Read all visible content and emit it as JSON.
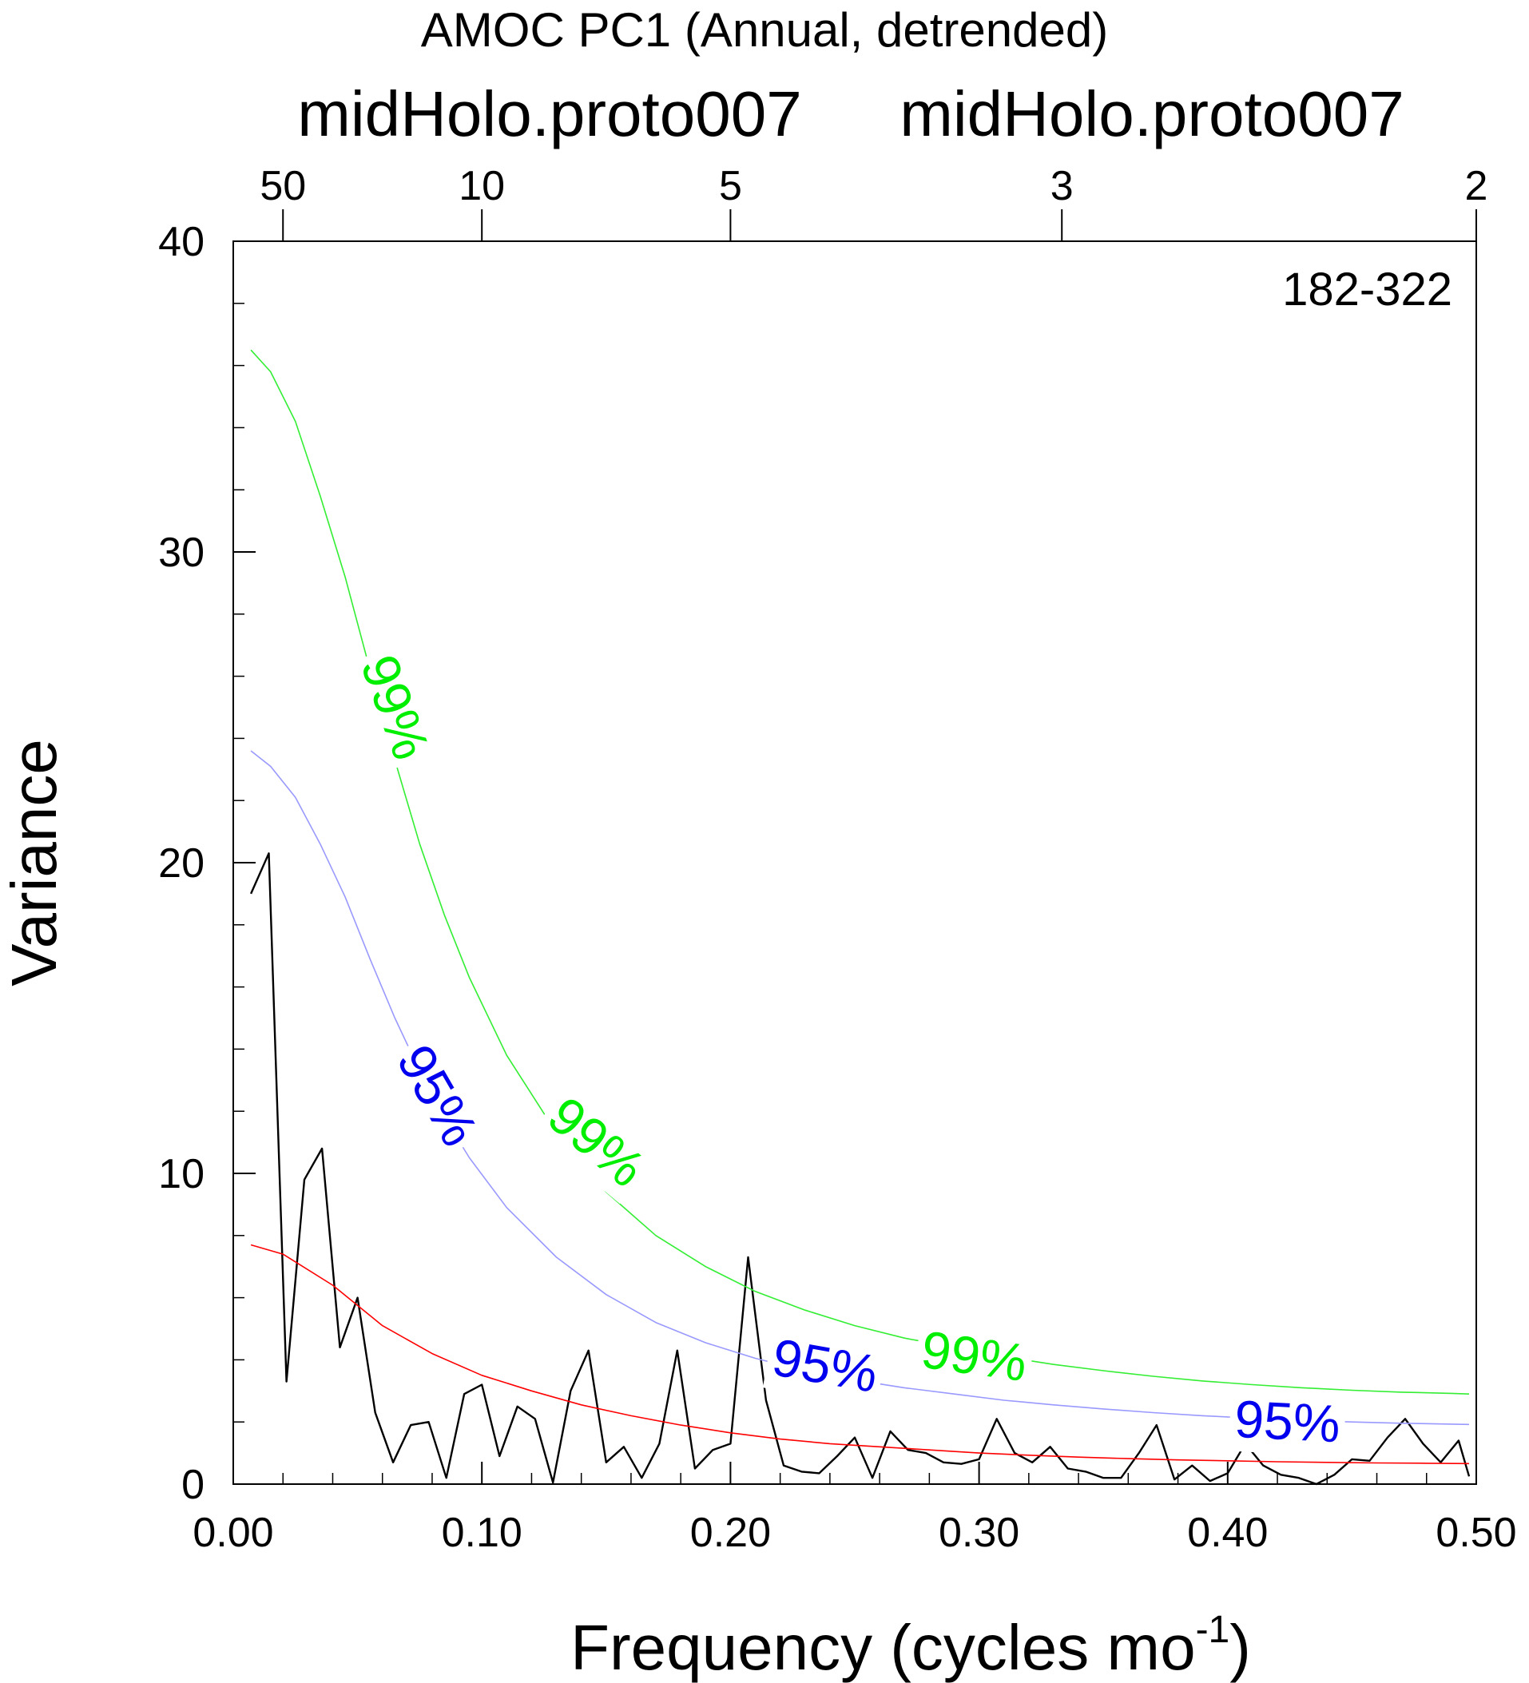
{
  "chart_data": {
    "type": "line",
    "title": "AMOC PC1 (Annual, detrended)",
    "subtitle_left": "midHolo.proto007",
    "subtitle_right": "midHolo.proto007",
    "period_label": "182-322",
    "xlabel_main": "Frequency (cycles mo",
    "xlabel_sup": "-1",
    "xlabel_close": ")",
    "ylabel": "Variance",
    "xlim": [
      0,
      0.5
    ],
    "ylim": [
      0,
      40
    ],
    "grid": false,
    "x_ticks": [
      {
        "value": 0.0,
        "label": "0.00"
      },
      {
        "value": 0.1,
        "label": "0.10"
      },
      {
        "value": 0.2,
        "label": "0.20"
      },
      {
        "value": 0.3,
        "label": "0.30"
      },
      {
        "value": 0.4,
        "label": "0.40"
      },
      {
        "value": 0.5,
        "label": "0.50"
      }
    ],
    "y_ticks": [
      {
        "value": 0,
        "label": "0"
      },
      {
        "value": 10,
        "label": "10"
      },
      {
        "value": 20,
        "label": "20"
      },
      {
        "value": 30,
        "label": "30"
      },
      {
        "value": 40,
        "label": "40"
      }
    ],
    "top_axis_ticks": [
      {
        "freq": 0.02,
        "label": "50"
      },
      {
        "freq": 0.1,
        "label": "10"
      },
      {
        "freq": 0.2,
        "label": "5"
      },
      {
        "freq": 0.3333,
        "label": "3"
      },
      {
        "freq": 0.5,
        "label": "2"
      }
    ],
    "series": [
      {
        "color": "#000000",
        "x": [
          0.0071,
          0.0143,
          0.0214,
          0.0286,
          0.0357,
          0.0429,
          0.05,
          0.0571,
          0.0643,
          0.0714,
          0.0786,
          0.0857,
          0.0929,
          0.1,
          0.1071,
          0.1143,
          0.1214,
          0.1286,
          0.1357,
          0.1429,
          0.15,
          0.1571,
          0.1643,
          0.1714,
          0.1786,
          0.1857,
          0.1929,
          0.2,
          0.2071,
          0.2143,
          0.2214,
          0.2286,
          0.2357,
          0.2429,
          0.25,
          0.2571,
          0.2643,
          0.2714,
          0.2786,
          0.2857,
          0.2929,
          0.3,
          0.3071,
          0.3143,
          0.3214,
          0.3286,
          0.3357,
          0.3429,
          0.35,
          0.3571,
          0.3643,
          0.3714,
          0.3786,
          0.3857,
          0.3929,
          0.4,
          0.4071,
          0.4143,
          0.4214,
          0.4286,
          0.4357,
          0.4429,
          0.45,
          0.4571,
          0.4643,
          0.4714,
          0.4786,
          0.4857,
          0.4929,
          0.4971
        ],
        "y": [
          19.0,
          20.3,
          3.3,
          9.8,
          10.8,
          4.4,
          6.0,
          2.3,
          0.7,
          1.9,
          2.0,
          0.2,
          2.9,
          3.2,
          0.9,
          2.5,
          2.1,
          0.05,
          3.0,
          4.3,
          0.7,
          1.2,
          0.2,
          1.3,
          4.3,
          0.5,
          1.1,
          1.3,
          7.3,
          2.7,
          0.6,
          0.4,
          0.35,
          0.9,
          1.5,
          0.2,
          1.7,
          1.1,
          1.0,
          0.7,
          0.65,
          0.8,
          2.1,
          1.0,
          0.7,
          1.2,
          0.5,
          0.4,
          0.2,
          0.2,
          1.0,
          1.9,
          0.15,
          0.6,
          0.1,
          0.35,
          1.3,
          0.6,
          0.3,
          0.2,
          0.0,
          0.3,
          0.8,
          0.75,
          1.5,
          2.1,
          1.3,
          0.7,
          1.4,
          0.25
        ]
      },
      {
        "color": "#ff0000",
        "x": [
          0.0071,
          0.02,
          0.04,
          0.06,
          0.08,
          0.1,
          0.12,
          0.14,
          0.16,
          0.18,
          0.2,
          0.22,
          0.24,
          0.26,
          0.28,
          0.3,
          0.32,
          0.34,
          0.36,
          0.38,
          0.4,
          0.42,
          0.44,
          0.46,
          0.48,
          0.4971
        ],
        "y": [
          7.7,
          7.4,
          6.4,
          5.1,
          4.2,
          3.5,
          3.0,
          2.55,
          2.2,
          1.9,
          1.65,
          1.45,
          1.3,
          1.2,
          1.1,
          1.0,
          0.93,
          0.87,
          0.82,
          0.78,
          0.75,
          0.72,
          0.7,
          0.68,
          0.67,
          0.66
        ]
      },
      {
        "color": "#9999ff",
        "x": [
          0.0071,
          0.015,
          0.025,
          0.035,
          0.045,
          0.055,
          0.065,
          0.075,
          0.085,
          0.095,
          0.11,
          0.13,
          0.15,
          0.17,
          0.19,
          0.21,
          0.23,
          0.25,
          0.27,
          0.29,
          0.31,
          0.33,
          0.35,
          0.37,
          0.39,
          0.41,
          0.43,
          0.45,
          0.47,
          0.49,
          0.4971
        ],
        "y": [
          23.6,
          23.1,
          22.1,
          20.6,
          18.9,
          16.9,
          15.0,
          13.3,
          11.8,
          10.5,
          8.9,
          7.3,
          6.1,
          5.2,
          4.55,
          4.05,
          3.65,
          3.35,
          3.1,
          2.9,
          2.7,
          2.55,
          2.42,
          2.3,
          2.2,
          2.12,
          2.05,
          2.0,
          1.96,
          1.93,
          1.92
        ]
      },
      {
        "color": "#33ee33",
        "x": [
          0.0071,
          0.015,
          0.025,
          0.035,
          0.045,
          0.055,
          0.065,
          0.075,
          0.085,
          0.095,
          0.11,
          0.13,
          0.15,
          0.17,
          0.19,
          0.21,
          0.23,
          0.25,
          0.27,
          0.29,
          0.31,
          0.33,
          0.35,
          0.37,
          0.39,
          0.41,
          0.43,
          0.45,
          0.47,
          0.49,
          0.4971
        ],
        "y": [
          36.5,
          35.8,
          34.2,
          31.8,
          29.2,
          26.2,
          23.3,
          20.6,
          18.3,
          16.3,
          13.8,
          11.3,
          9.4,
          8.0,
          7.0,
          6.2,
          5.6,
          5.1,
          4.7,
          4.4,
          4.1,
          3.85,
          3.65,
          3.47,
          3.32,
          3.2,
          3.1,
          3.02,
          2.96,
          2.92,
          2.9
        ]
      }
    ],
    "curve_labels": [
      {
        "text": "99%",
        "color": "#00ee00",
        "x": 0.065,
        "y": 25.0,
        "angle": 70
      },
      {
        "text": "99%",
        "color": "#00ee00",
        "x": 0.146,
        "y": 11.0,
        "angle": 40
      },
      {
        "text": "99%",
        "color": "#00ee00",
        "x": 0.298,
        "y": 4.1,
        "angle": 8
      },
      {
        "text": "95%",
        "color": "#0000ee",
        "x": 0.082,
        "y": 12.5,
        "angle": 60
      },
      {
        "text": "95%",
        "color": "#0000ee",
        "x": 0.238,
        "y": 3.8,
        "angle": 10
      },
      {
        "text": "95%",
        "color": "#0000ee",
        "x": 0.424,
        "y": 2.0,
        "angle": 3
      }
    ]
  }
}
